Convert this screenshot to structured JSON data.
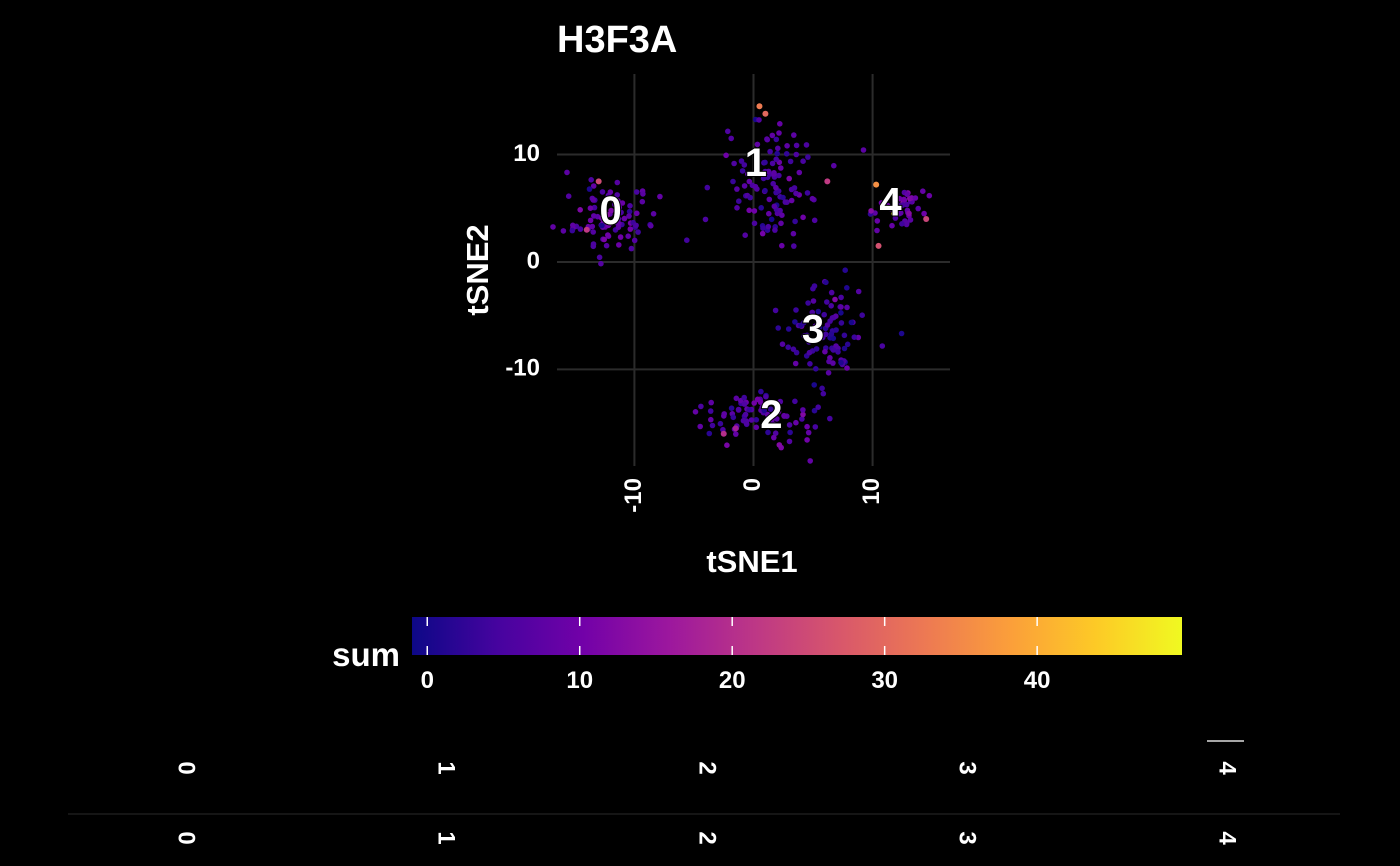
{
  "chart_data": [
    {
      "type": "scatter",
      "title": "H3F3A",
      "xlabel": "tSNE1",
      "ylabel": "tSNE2",
      "xlim": [
        -16.5,
        16.5
      ],
      "ylim": [
        -19,
        17.5
      ],
      "x_ticks": [
        -10,
        0,
        10
      ],
      "x_tick_labels": [
        "-10",
        "0",
        "10"
      ],
      "y_ticks": [
        -10,
        0,
        10
      ],
      "y_tick_labels": [
        "-10",
        "0",
        "10"
      ],
      "grid": true,
      "background": "#000000",
      "cluster_labels": [
        {
          "label": "0",
          "x": -12,
          "y": 4.5
        },
        {
          "label": "1",
          "x": 0.2,
          "y": 9
        },
        {
          "label": "2",
          "x": 1.5,
          "y": -14.5
        },
        {
          "label": "3",
          "x": 5,
          "y": -6.5
        },
        {
          "label": "4",
          "x": 11.5,
          "y": 5.3
        }
      ],
      "clusters": [
        {
          "cluster": "0",
          "center": [
            -12,
            4
          ],
          "spread": [
            3.2,
            3.4
          ],
          "n": 90,
          "color_value_mean": 7
        },
        {
          "cluster": "1",
          "center": [
            1.5,
            7
          ],
          "spread": [
            4,
            5
          ],
          "n": 110,
          "color_value_mean": 6
        },
        {
          "cluster": "2",
          "center": [
            0.5,
            -14.5
          ],
          "spread": [
            4.5,
            2.2
          ],
          "n": 90,
          "color_value_mean": 6
        },
        {
          "cluster": "3",
          "center": [
            6,
            -6.5
          ],
          "spread": [
            3.5,
            4.5
          ],
          "n": 90,
          "color_value_mean": 4
        },
        {
          "cluster": "4",
          "center": [
            12.5,
            5
          ],
          "spread": [
            2,
            1.6
          ],
          "n": 45,
          "color_value_mean": 9
        }
      ],
      "highlight_points": [
        {
          "x": 0.5,
          "y": 14.5,
          "value": 33
        },
        {
          "x": 1,
          "y": 13.8,
          "value": 30
        },
        {
          "x": -13,
          "y": 7.5,
          "value": 25
        },
        {
          "x": -14,
          "y": 3,
          "value": 22
        },
        {
          "x": 10.3,
          "y": 7.2,
          "value": 36
        },
        {
          "x": 11.8,
          "y": 4.5,
          "value": 48
        },
        {
          "x": 14.5,
          "y": 4,
          "value": 24
        },
        {
          "x": 6.2,
          "y": 7.5,
          "value": 22
        },
        {
          "x": -2.5,
          "y": -16,
          "value": 20
        },
        {
          "x": 10.5,
          "y": 1.5,
          "value": 26
        },
        {
          "x": -1.5,
          "y": -15.5,
          "value": 17
        }
      ]
    },
    {
      "type": "heatmap",
      "legend_title": "sum",
      "colorscale": [
        "#0d0887",
        "#46039f",
        "#7201a8",
        "#9c179e",
        "#bd3786",
        "#d8576b",
        "#ed7953",
        "#fb9f3a",
        "#fdca26",
        "#f0f921"
      ],
      "range": [
        -1,
        49.5
      ],
      "ticks": [
        0,
        10,
        20,
        30,
        40
      ],
      "tick_labels": [
        "0",
        "10",
        "20",
        "30",
        "40"
      ]
    }
  ],
  "strips": {
    "top_labels": [
      "0",
      "1",
      "2",
      "3",
      "4"
    ],
    "bottom_labels": [
      "0",
      "1",
      "2",
      "3",
      "4"
    ]
  }
}
